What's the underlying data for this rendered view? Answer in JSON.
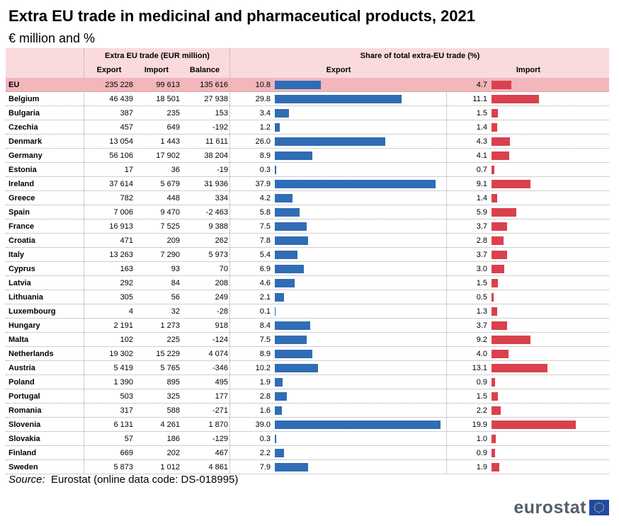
{
  "title": "Extra EU trade in medicinal and pharmaceutical products, 2021",
  "subtitle": "€ million and  %",
  "headers": {
    "group_trade": "Extra EU trade (EUR million)",
    "group_share": "Share of total extra-EU trade (%)",
    "export": "Export",
    "import": "Import",
    "balance": "Balance",
    "share_export": "Export",
    "share_import": "Import"
  },
  "source": {
    "label": "Source:",
    "text": "Eurostat (online data code: DS-018995)"
  },
  "logo": {
    "text": "eurostat"
  },
  "colors": {
    "export_bar": "#2f6db5",
    "import_bar": "#d9414e",
    "header_band": "#fadadd",
    "eu_row": "#f2b6bb"
  },
  "chart_data": {
    "type": "table",
    "title": "Extra EU trade in medicinal and pharmaceutical products, 2021",
    "columns": [
      "Export",
      "Import",
      "Balance",
      "Share Export (%)",
      "Share Import (%)"
    ],
    "share_scale_max": {
      "export": 40,
      "import": 20
    },
    "rows": [
      {
        "country": "EU",
        "export": "235 228",
        "import": "99 613",
        "balance": "135 616",
        "share_export": 10.8,
        "share_import": 4.7,
        "highlight": true
      },
      {
        "country": "Belgium",
        "export": "46 439",
        "import": "18 501",
        "balance": "27 938",
        "share_export": 29.8,
        "share_import": 11.1
      },
      {
        "country": "Bulgaria",
        "export": "387",
        "import": "235",
        "balance": "153",
        "share_export": 3.4,
        "share_import": 1.5
      },
      {
        "country": "Czechia",
        "export": "457",
        "import": "649",
        "balance": "-192",
        "share_export": 1.2,
        "share_import": 1.4
      },
      {
        "country": "Denmark",
        "export": "13 054",
        "import": "1 443",
        "balance": "11 611",
        "share_export": 26.0,
        "share_import": 4.3
      },
      {
        "country": "Germany",
        "export": "56 106",
        "import": "17 902",
        "balance": "38 204",
        "share_export": 8.9,
        "share_import": 4.1
      },
      {
        "country": "Estonia",
        "export": "17",
        "import": "36",
        "balance": "-19",
        "share_export": 0.3,
        "share_import": 0.7
      },
      {
        "country": "Ireland",
        "export": "37 614",
        "import": "5 679",
        "balance": "31 936",
        "share_export": 37.9,
        "share_import": 9.1
      },
      {
        "country": "Greece",
        "export": "782",
        "import": "448",
        "balance": "334",
        "share_export": 4.2,
        "share_import": 1.4
      },
      {
        "country": "Spain",
        "export": "7 006",
        "import": "9 470",
        "balance": "-2 463",
        "share_export": 5.8,
        "share_import": 5.9
      },
      {
        "country": "France",
        "export": "16 913",
        "import": "7 525",
        "balance": "9 388",
        "share_export": 7.5,
        "share_import": 3.7
      },
      {
        "country": "Croatia",
        "export": "471",
        "import": "209",
        "balance": "262",
        "share_export": 7.8,
        "share_import": 2.8
      },
      {
        "country": "Italy",
        "export": "13 263",
        "import": "7 290",
        "balance": "5 973",
        "share_export": 5.4,
        "share_import": 3.7
      },
      {
        "country": "Cyprus",
        "export": "163",
        "import": "93",
        "balance": "70",
        "share_export": 6.9,
        "share_import": 3.0
      },
      {
        "country": "Latvia",
        "export": "292",
        "import": "84",
        "balance": "208",
        "share_export": 4.6,
        "share_import": 1.5
      },
      {
        "country": "Lithuania",
        "export": "305",
        "import": "56",
        "balance": "249",
        "share_export": 2.1,
        "share_import": 0.5
      },
      {
        "country": "Luxembourg",
        "export": "4",
        "import": "32",
        "balance": "-28",
        "share_export": 0.1,
        "share_import": 1.3
      },
      {
        "country": "Hungary",
        "export": "2 191",
        "import": "1 273",
        "balance": "918",
        "share_export": 8.4,
        "share_import": 3.7
      },
      {
        "country": "Malta",
        "export": "102",
        "import": "225",
        "balance": "-124",
        "share_export": 7.5,
        "share_import": 9.2
      },
      {
        "country": "Netherlands",
        "export": "19 302",
        "import": "15 229",
        "balance": "4 074",
        "share_export": 8.9,
        "share_import": 4.0
      },
      {
        "country": "Austria",
        "export": "5 419",
        "import": "5 765",
        "balance": "-346",
        "share_export": 10.2,
        "share_import": 13.1
      },
      {
        "country": "Poland",
        "export": "1 390",
        "import": "895",
        "balance": "495",
        "share_export": 1.9,
        "share_import": 0.9
      },
      {
        "country": "Portugal",
        "export": "503",
        "import": "325",
        "balance": "177",
        "share_export": 2.8,
        "share_import": 1.5
      },
      {
        "country": "Romania",
        "export": "317",
        "import": "588",
        "balance": "-271",
        "share_export": 1.6,
        "share_import": 2.2
      },
      {
        "country": "Slovenia",
        "export": "6 131",
        "import": "4 261",
        "balance": "1 870",
        "share_export": 39.0,
        "share_import": 19.9
      },
      {
        "country": "Slovakia",
        "export": "57",
        "import": "186",
        "balance": "-129",
        "share_export": 0.3,
        "share_import": 1.0
      },
      {
        "country": "Finland",
        "export": "669",
        "import": "202",
        "balance": "467",
        "share_export": 2.2,
        "share_import": 0.9
      },
      {
        "country": "Sweden",
        "export": "5 873",
        "import": "1 012",
        "balance": "4 861",
        "share_export": 7.9,
        "share_import": 1.9
      }
    ]
  }
}
